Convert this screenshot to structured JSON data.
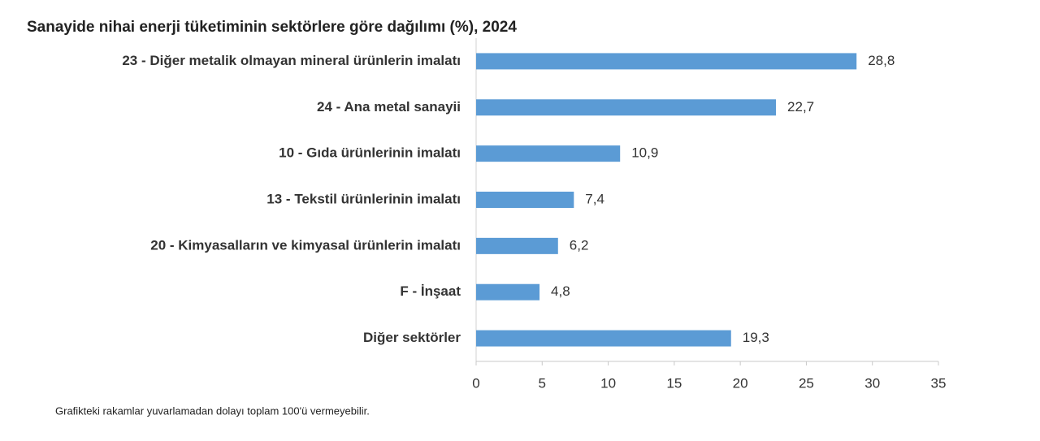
{
  "chart_data": {
    "type": "bar",
    "orientation": "horizontal",
    "title": "Sanayide nihai enerji tüketiminin sektörlere göre dağılımı (%), 2024",
    "categories": [
      "23 - Diğer metalik olmayan mineral ürünlerin imalatı",
      "24 - Ana metal sanayii",
      "10 - Gıda ürünlerinin imalatı",
      "13 - Tekstil ürünlerinin imalatı",
      "20 - Kimyasalların ve kimyasal ürünlerin imalatı",
      "F - İnşaat",
      "Diğer sektörler"
    ],
    "values": [
      28.8,
      22.7,
      10.9,
      7.4,
      6.2,
      4.8,
      19.3
    ],
    "value_labels": [
      "28,8",
      "22,7",
      "10,9",
      "7,4",
      "6,2",
      "4,8",
      "19,3"
    ],
    "color": "#5b9bd5",
    "xlim": [
      0,
      35
    ],
    "xticks": [
      0,
      5,
      10,
      15,
      20,
      25,
      30,
      35
    ],
    "note": "Grafikteki rakamlar yuvarlamadan dolayı toplam 100'ü vermeyebilir."
  }
}
